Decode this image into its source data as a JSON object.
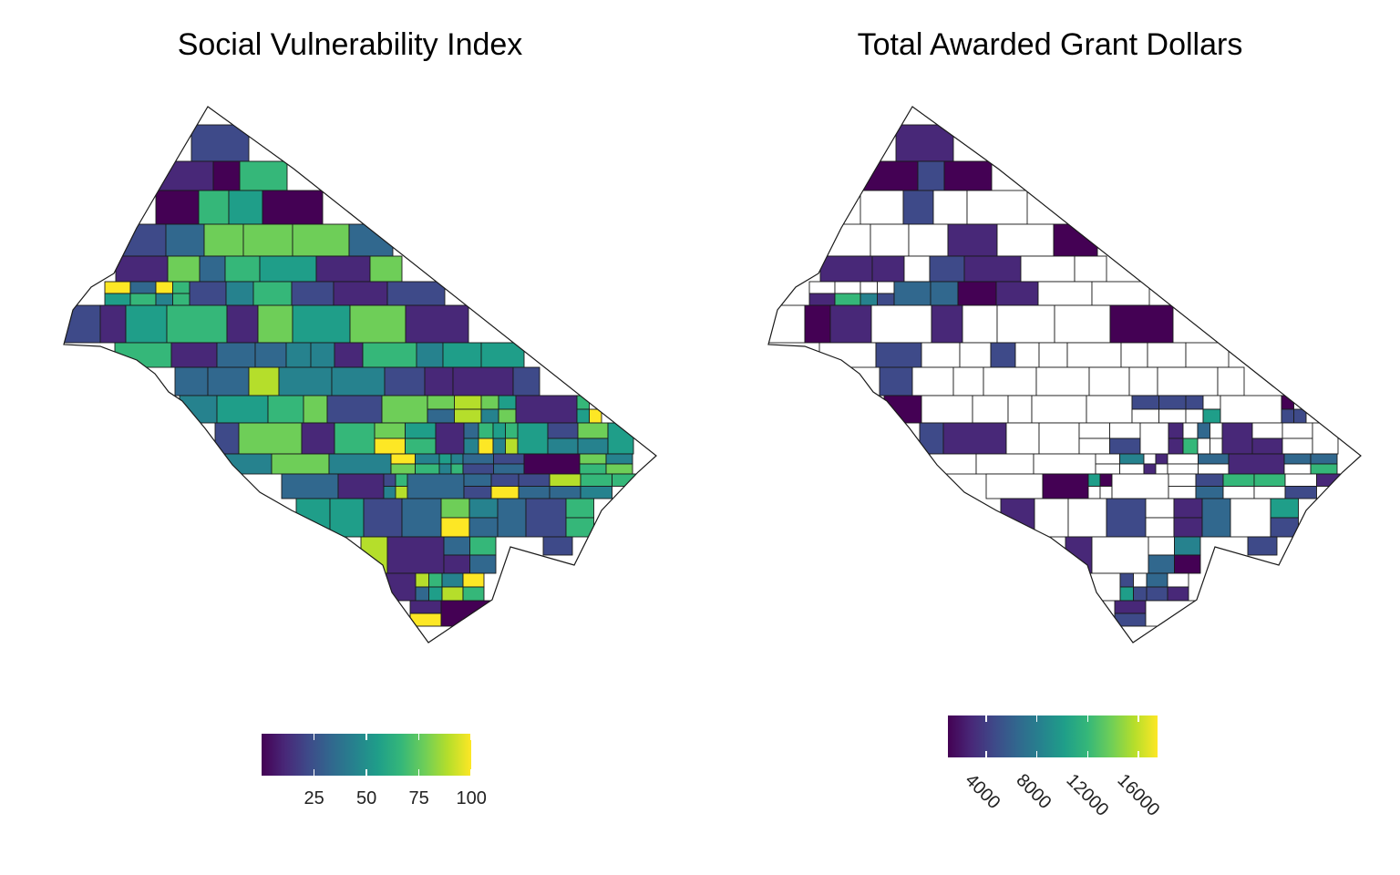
{
  "maps": [
    {
      "id": "svi",
      "title": "Social Vulnerability Index",
      "legend": {
        "min": 0,
        "max": 100,
        "ticks": [
          {
            "value": 25,
            "label": "25"
          },
          {
            "value": 50,
            "label": "50"
          },
          {
            "value": 75,
            "label": "75"
          },
          {
            "value": 100,
            "label": "100"
          }
        ],
        "label_rotation_deg": 0
      }
    },
    {
      "id": "grants",
      "title": "Total Awarded Grant Dollars",
      "legend": {
        "min": 1000,
        "max": 17500,
        "ticks": [
          {
            "value": 4000,
            "label": "4000"
          },
          {
            "value": 8000,
            "label": "8000"
          },
          {
            "value": 12000,
            "label": "12000"
          },
          {
            "value": 16000,
            "label": "16000"
          }
        ],
        "label_rotation_deg": 45
      }
    }
  ],
  "palette": [
    "#440154",
    "#482878",
    "#3e4a89",
    "#31688e",
    "#26828e",
    "#1f9e89",
    "#35b779",
    "#6ece58",
    "#b5de2b",
    "#fde725"
  ],
  "no_data_color": "#ffffff",
  "border_color": "#1a1a1a"
}
